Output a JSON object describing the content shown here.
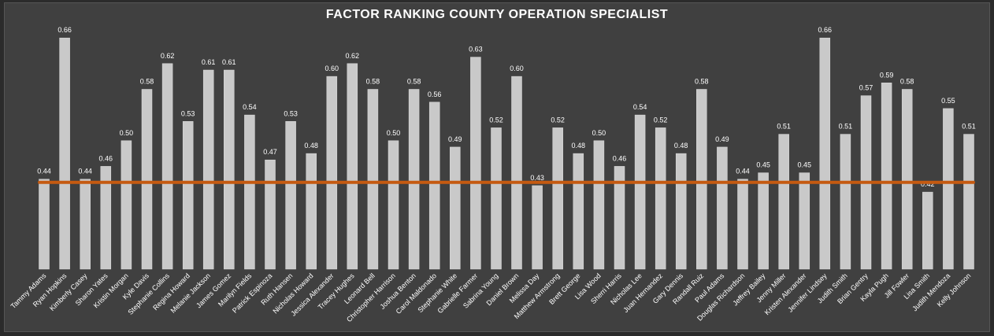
{
  "chart_data": {
    "type": "bar",
    "title": "FACTOR RANKING COUNTY OPERATION SPECIALIST",
    "xlabel": "",
    "ylabel": "",
    "ylim": [
      0.3,
      0.67
    ],
    "grid": false,
    "legend": "none",
    "categories": [
      "Tammy Adams",
      "Ryan Hopkins",
      "Kimberly Casey",
      "Sharon Yates",
      "Kristin Morgan",
      "Kyle Davis",
      "Stephanie Collins",
      "Regina Howard",
      "Melanie Jackson",
      "James Gomez",
      "Marilyn Fields",
      "Patrick Espinoza",
      "Ruth Hansen",
      "Nicholas Howard",
      "Jessica Alexander",
      "Tracey Hughes",
      "Leonard Bell",
      "Christopher Harrison",
      "Joshua Benton",
      "Carol Maldonado",
      "Stephanie White",
      "Gabrielle Farmer",
      "Sabrina Young",
      "Daniel Brown",
      "Melissa Day",
      "Matthew Armstrong",
      "Brett George",
      "Lisa Wood",
      "Sherri Harris",
      "Nicholas Lee",
      "Juan Hernandez",
      "Gary Dennis",
      "Randall Ruiz",
      "Paul Adams",
      "Douglas Richardson",
      "Jeffrey Bailey",
      "Jenny Miller",
      "Kristen Alexander",
      "Jennifer Lindsey",
      "Judith Smith",
      "Brian Gentry",
      "Kayla Pugh",
      "Jill Fowler",
      "Lisa Smith",
      "Judith Mendoza",
      "Kelly Johnson"
    ],
    "series": [
      {
        "values": [
          0.44,
          0.66,
          0.44,
          0.46,
          0.5,
          0.58,
          0.62,
          0.53,
          0.61,
          0.61,
          0.54,
          0.47,
          0.53,
          0.48,
          0.6,
          0.62,
          0.58,
          0.5,
          0.58,
          0.56,
          0.49,
          0.63,
          0.52,
          0.6,
          0.43,
          0.52,
          0.48,
          0.5,
          0.46,
          0.54,
          0.52,
          0.48,
          0.58,
          0.49,
          0.44,
          0.45,
          0.51,
          0.45,
          0.66,
          0.51,
          0.57,
          0.59,
          0.58,
          0.42,
          0.55,
          0.51
        ],
        "labels": [
          "0.44",
          "0.66",
          "0.44",
          "0.46",
          "0.50",
          "0.58",
          "0.62",
          "0.53",
          "0.61",
          "0.61",
          "0.54",
          "0.47",
          "0.53",
          "0.48",
          "0.60",
          "0.62",
          "0.58",
          "0.50",
          "0.58",
          "0.56",
          "0.49",
          "0.63",
          "0.52",
          "0.60",
          "0.43",
          "0.52",
          "0.48",
          "0.50",
          "0.46",
          "0.54",
          "0.52",
          "0.48",
          "0.58",
          "0.49",
          "0.44",
          "0.45",
          "0.51",
          "0.45",
          "0.66",
          "0.51",
          "0.57",
          "0.59",
          "0.58",
          "0.42",
          "0.55",
          "0.51"
        ]
      }
    ],
    "reference_line": {
      "value": 0.435
    },
    "colors": {
      "background": "#404040",
      "bar": "#c9c9c9",
      "bar_edge": "#e0e0e0",
      "reference_line": "#c55a11",
      "text": "#ffffff"
    }
  }
}
